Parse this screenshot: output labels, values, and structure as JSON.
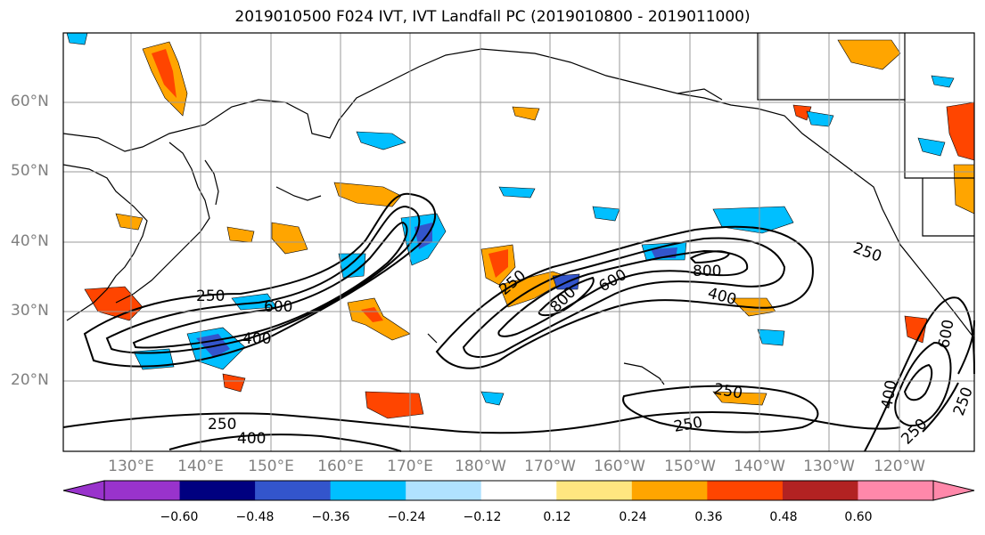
{
  "title": "2019010500 F024 IVT, IVT Landfall PC (2019010800 - 2019011000)",
  "lat_labels": [
    "60°N",
    "50°N",
    "40°N",
    "30°N",
    "20°N"
  ],
  "lon_labels": [
    "130°E",
    "140°E",
    "150°E",
    "160°E",
    "170°E",
    "180°W",
    "170°W",
    "160°W",
    "150°W",
    "140°W",
    "130°W",
    "120°W"
  ],
  "contour_labels": [
    "250",
    "600",
    "400",
    "250",
    "400",
    "250",
    "600",
    "800",
    "800",
    "400",
    "250",
    "250",
    "250",
    "600",
    "400",
    "250",
    "250"
  ],
  "colorbar": {
    "tick_labels": [
      "−0.60",
      "−0.48",
      "−0.36",
      "−0.24",
      "−0.12",
      "0.12",
      "0.24",
      "0.36",
      "0.48",
      "0.60"
    ],
    "colors": [
      "#9933cc",
      "#000080",
      "#3355cc",
      "#00bfff",
      "#b0e2ff",
      "#ffffff",
      "#ffe680",
      "#ffa500",
      "#ff4500",
      "#b22222",
      "#ff88aa"
    ]
  },
  "chart_data": {
    "type": "contour map",
    "title": "2019010500 F024 IVT, IVT Landfall PC (2019010800 - 2019011000)",
    "projection": "cylindrical",
    "lon_range": [
      "120°E",
      "110°W"
    ],
    "lat_range": [
      "10°N",
      "70°N"
    ],
    "grid": true,
    "contour_levels": [
      250,
      400,
      600,
      800
    ],
    "shading_levels": [
      -0.6,
      -0.48,
      -0.36,
      -0.24,
      -0.12,
      0.12,
      0.24,
      0.36,
      0.48,
      0.6
    ]
  }
}
